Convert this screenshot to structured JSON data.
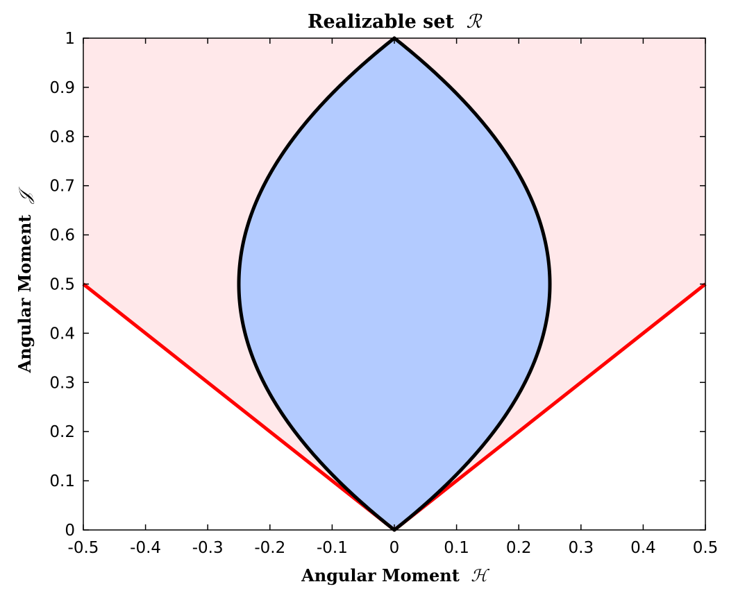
{
  "chart_data": {
    "type": "area",
    "title": {
      "text": "Realizable set",
      "symbol": "ℛ"
    },
    "xlabel": {
      "text": "Angular Moment",
      "symbol": "ℋ"
    },
    "ylabel": {
      "text": "Angular Moment",
      "symbol": "𝒥"
    },
    "xlim": [
      -0.5,
      0.5
    ],
    "ylim": [
      0,
      1
    ],
    "xticks": [
      -0.5,
      -0.4,
      -0.3,
      -0.2,
      -0.1,
      0,
      0.1,
      0.2,
      0.3,
      0.4,
      0.5
    ],
    "yticks": [
      0,
      0.1,
      0.2,
      0.3,
      0.4,
      0.5,
      0.6,
      0.7,
      0.8,
      0.9,
      1
    ],
    "xtick_labels": [
      "-0.5",
      "-0.4",
      "-0.3",
      "-0.2",
      "-0.1",
      "0",
      "0.1",
      "0.2",
      "0.3",
      "0.4",
      "0.5"
    ],
    "ytick_labels": [
      "0",
      "0.1",
      "0.2",
      "0.3",
      "0.4",
      "0.5",
      "0.6",
      "0.7",
      "0.8",
      "0.9",
      "1"
    ],
    "grid": false,
    "legend": "none",
    "series": [
      {
        "kind": "region",
        "color": "#ffe8ea",
        "boundary": "J >= |H|",
        "points": [
          [
            -0.5,
            0.5
          ],
          [
            0,
            0
          ],
          [
            0.5,
            0.5
          ],
          [
            0.5,
            1
          ],
          [
            -0.5,
            1
          ]
        ]
      },
      {
        "kind": "region",
        "color": "#b3cbff",
        "edge_color": "#000000",
        "boundary": "|H| <= J (1 - J)",
        "x_right": "J (1 - J)",
        "y_range": [
          0,
          1
        ]
      },
      {
        "kind": "line",
        "color": "#ff0000",
        "x": [
          -0.5,
          0
        ],
        "y": [
          0.5,
          0
        ]
      },
      {
        "kind": "line",
        "color": "#ff0000",
        "x": [
          0,
          0.5
        ],
        "y": [
          0,
          0.5
        ]
      }
    ]
  }
}
